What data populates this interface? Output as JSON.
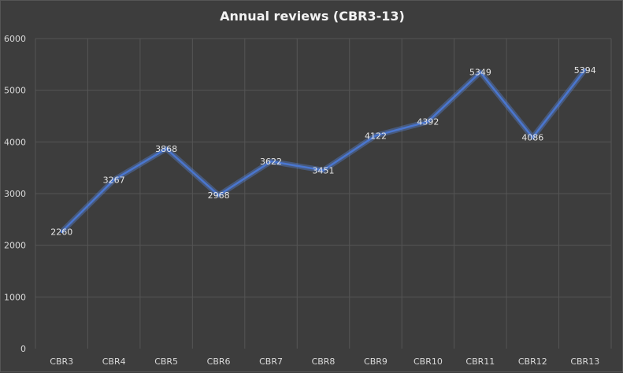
{
  "chart_data": {
    "type": "line",
    "title": "Annual reviews (CBR3-13)",
    "xlabel": "",
    "ylabel": "",
    "categories": [
      "CBR3",
      "CBR4",
      "CBR5",
      "CBR6",
      "CBR7",
      "CBR8",
      "CBR9",
      "CBR10",
      "CBR11",
      "CBR12",
      "CBR13"
    ],
    "series": [
      {
        "values": [
          2260,
          3267,
          3868,
          2968,
          3622,
          3451,
          4122,
          4392,
          5349,
          4086,
          5394
        ]
      }
    ],
    "ylim": [
      0,
      6000
    ],
    "yticks": [
      0,
      1000,
      2000,
      3000,
      4000,
      5000,
      6000
    ],
    "grid": true,
    "data_labels": true,
    "legend": "none",
    "colors": {
      "background": "#3d3d3d",
      "line": "#4a76cf",
      "grid": "#555555",
      "text": "#d9d9d9"
    }
  }
}
